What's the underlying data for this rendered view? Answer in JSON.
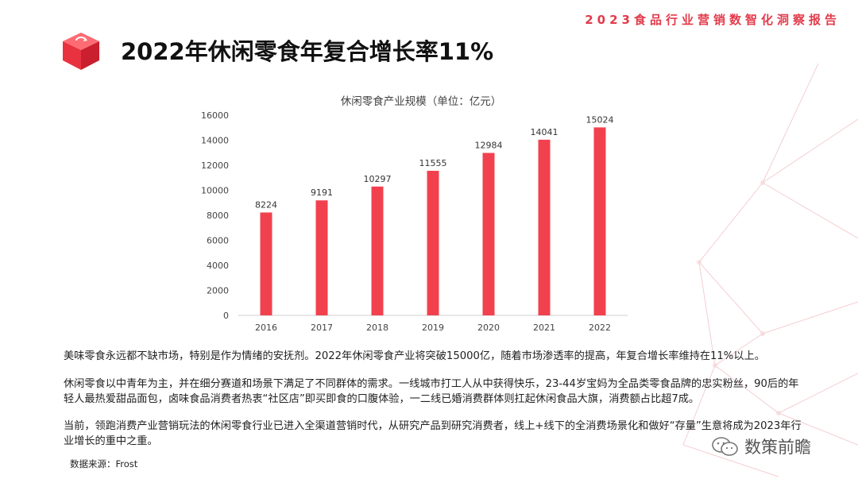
{
  "header": {
    "report_tag": "2023食品行业营销数智化洞察报告",
    "title": "2022年休闲零食年复合增长率11%"
  },
  "chart_data": {
    "type": "bar",
    "title": "休闲零食产业规模（单位：亿元）",
    "categories": [
      "2016",
      "2017",
      "2018",
      "2019",
      "2020",
      "2021",
      "2022"
    ],
    "values": [
      8224,
      9191,
      10297,
      11555,
      12984,
      14041,
      15024
    ],
    "ylim": [
      0,
      16000
    ],
    "yticks": [
      0,
      2000,
      4000,
      6000,
      8000,
      10000,
      12000,
      14000,
      16000
    ],
    "xlabel": "",
    "ylabel": "",
    "grid": false,
    "bar_color": "#f2414e"
  },
  "body": {
    "paragraph1": "美味零食永远都不缺市场，特别是作为情绪的安抚剂。2022年休闲零食产业将突破15000亿，随着市场渗透率的提高，年复合增长率维持在11%以上。",
    "paragraph2": "休闲零食以中青年为主，并在细分赛道和场景下满足了不同群体的需求。一线城市打工人从中获得快乐，23-44岁宝妈为全品类零食品牌的忠实粉丝，90后的年轻人最热爱甜品面包，卤味食品消费者热衷“社区店”即买即食的口腹体验，一二线已婚消费群体则扛起休闲食品大旗，消费额占比超7成。",
    "paragraph3": "当前，领跑消费产业营销玩法的休闲零食行业已进入全渠道营销时代，从研究产品到研究消费者，线上+线下的全消费场景化和做好“存量”生意将成为2023年行业增长的重中之重。"
  },
  "footer": {
    "source": "数据来源：Frost",
    "watermark": "数策前瞻"
  },
  "colors": {
    "accent": "#e23b4b",
    "bar": "#f2414e"
  },
  "icons": {
    "logo": "refresh-cube-icon",
    "watermark": "wechat-icon"
  }
}
